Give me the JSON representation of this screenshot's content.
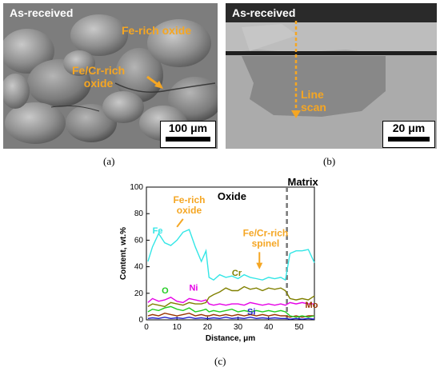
{
  "panel_a": {
    "label": "As-received",
    "annotation_1": "Fe-rich oxide",
    "annotation_2_line1": "Fe/Cr-rich",
    "annotation_2_line2": "oxide",
    "scale": "100 μm",
    "caption": "(a)"
  },
  "panel_b": {
    "label": "As-received",
    "annotation_line1": "Line",
    "annotation_line2": "scan",
    "scale": "20 μm",
    "caption": "(b)"
  },
  "panel_c": {
    "caption": "(c)"
  },
  "colors": {
    "Fe": "#33e6e6",
    "Cr": "#808000",
    "Ni": "#e600e6",
    "O": "#22cc22",
    "Si": "#1f1fcc",
    "Mo": "#993300",
    "annotation": "#f5a623"
  },
  "chart_data": {
    "type": "line",
    "xlabel": "Distance, μm",
    "ylabel": "Content, wt.%",
    "xlim": [
      0,
      55
    ],
    "ylim": [
      0,
      100
    ],
    "xticks": [
      0,
      10,
      20,
      30,
      40,
      50
    ],
    "yticks": [
      0,
      20,
      40,
      60,
      80,
      100
    ],
    "region_labels": {
      "oxide": "Oxide",
      "matrix": "Matrix"
    },
    "boundary_x": 46,
    "annotations": {
      "fe_oxide_line1": "Fe-rich",
      "fe_oxide_line2": "oxide",
      "spinel_line1": "Fe/Cr-rich",
      "spinel_line2": "spinel"
    },
    "series": [
      {
        "name": "Fe",
        "x": [
          0.5,
          2,
          4,
          6,
          8,
          10,
          12,
          14,
          16,
          18,
          19.5,
          20.5,
          22,
          24,
          26,
          28,
          30,
          32,
          34,
          36,
          38,
          40,
          42,
          44,
          45.5,
          47,
          49,
          51,
          53,
          55
        ],
        "values": [
          44,
          55,
          65,
          58,
          56,
          60,
          66,
          68,
          55,
          44,
          52,
          32,
          30,
          34,
          32,
          33,
          31,
          34,
          32,
          31,
          30,
          32,
          31,
          32,
          30,
          50,
          52,
          52,
          53,
          43
        ]
      },
      {
        "name": "Cr",
        "x": [
          0.5,
          2,
          4,
          6,
          8,
          10,
          12,
          14,
          16,
          18,
          19.5,
          20.5,
          22,
          24,
          26,
          28,
          30,
          32,
          34,
          36,
          38,
          40,
          42,
          44,
          45.5,
          47,
          49,
          51,
          53,
          55
        ],
        "values": [
          10,
          12,
          11,
          10,
          13,
          12,
          11,
          13,
          12,
          12,
          13,
          17,
          19,
          21,
          24,
          22,
          22,
          25,
          23,
          24,
          22,
          24,
          23,
          24,
          22,
          16,
          15,
          16,
          15,
          18
        ]
      },
      {
        "name": "Ni",
        "x": [
          0.5,
          2,
          4,
          6,
          8,
          10,
          12,
          14,
          16,
          18,
          19.5,
          20.5,
          22,
          24,
          26,
          28,
          30,
          32,
          34,
          36,
          38,
          40,
          42,
          44,
          45.5,
          47,
          49,
          51,
          53,
          55
        ],
        "values": [
          13,
          16,
          14,
          15,
          17,
          14,
          13,
          16,
          15,
          14,
          15,
          12,
          11,
          12,
          11,
          12,
          12,
          11,
          13,
          12,
          11,
          12,
          11,
          12,
          11,
          13,
          12,
          13,
          12,
          12
        ]
      },
      {
        "name": "O",
        "x": [
          0.5,
          2,
          4,
          6,
          8,
          10,
          12,
          14,
          16,
          18,
          19.5,
          20.5,
          22,
          24,
          26,
          28,
          30,
          32,
          34,
          36,
          38,
          40,
          42,
          44,
          45.5,
          47,
          49,
          51,
          53,
          55
        ],
        "values": [
          6,
          8,
          7,
          9,
          10,
          8,
          7,
          9,
          6,
          7,
          8,
          6,
          7,
          6,
          7,
          8,
          6,
          7,
          6,
          7,
          6,
          7,
          6,
          7,
          6,
          3,
          2,
          3,
          2,
          3
        ]
      },
      {
        "name": "Si",
        "x": [
          0.5,
          2,
          4,
          6,
          8,
          10,
          12,
          14,
          16,
          18,
          19.5,
          20.5,
          22,
          24,
          26,
          28,
          30,
          32,
          34,
          36,
          38,
          40,
          42,
          44,
          45.5,
          47,
          49,
          51,
          53,
          55
        ],
        "values": [
          1,
          1.5,
          1,
          2,
          1,
          1.5,
          1,
          2,
          1,
          1.5,
          1,
          1,
          1.5,
          1,
          2,
          1,
          1.5,
          1,
          2,
          1,
          1.5,
          1,
          1.5,
          1,
          1,
          0.5,
          1,
          0.5,
          1,
          0.5
        ]
      },
      {
        "name": "Mo",
        "x": [
          0.5,
          2,
          4,
          6,
          8,
          10,
          12,
          14,
          16,
          18,
          19.5,
          20.5,
          22,
          24,
          26,
          28,
          30,
          32,
          34,
          36,
          38,
          40,
          42,
          44,
          45.5,
          47,
          49,
          51,
          53,
          55
        ],
        "values": [
          3,
          4,
          3,
          5,
          4,
          3,
          4,
          5,
          3,
          4,
          3,
          3,
          4,
          3,
          4,
          3,
          4,
          3,
          4,
          3,
          4,
          3,
          4,
          3,
          3,
          2,
          3,
          2,
          3,
          3
        ]
      }
    ]
  }
}
